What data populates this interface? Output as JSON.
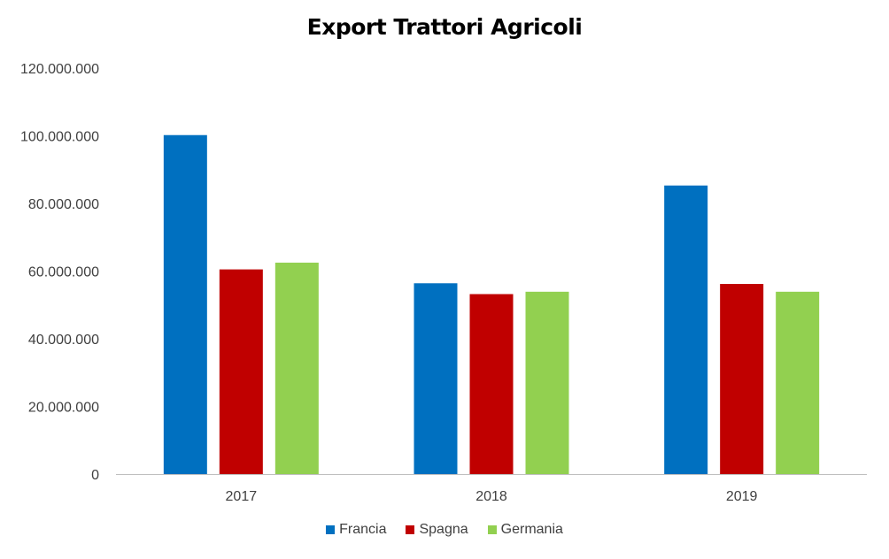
{
  "chart_data": {
    "type": "bar",
    "title": "Export Trattori Agricoli",
    "xlabel": "",
    "ylabel": "",
    "categories": [
      "2017",
      "2018",
      "2019"
    ],
    "series": [
      {
        "name": "Francia",
        "color": "#0070C0",
        "values": [
          100200000,
          56400000,
          85300000
        ]
      },
      {
        "name": "Spagna",
        "color": "#C00000",
        "values": [
          60500000,
          53200000,
          56200000
        ]
      },
      {
        "name": "Germania",
        "color": "#92D050",
        "values": [
          62500000,
          53900000,
          53900000
        ]
      }
    ],
    "ylim": [
      0,
      120000000
    ],
    "yticks": [
      "0",
      "20.000.000",
      "40.000.000",
      "60.000.000",
      "80.000.000",
      "100.000.000",
      "120.000.000"
    ],
    "grid": false,
    "legend": "bottom"
  }
}
